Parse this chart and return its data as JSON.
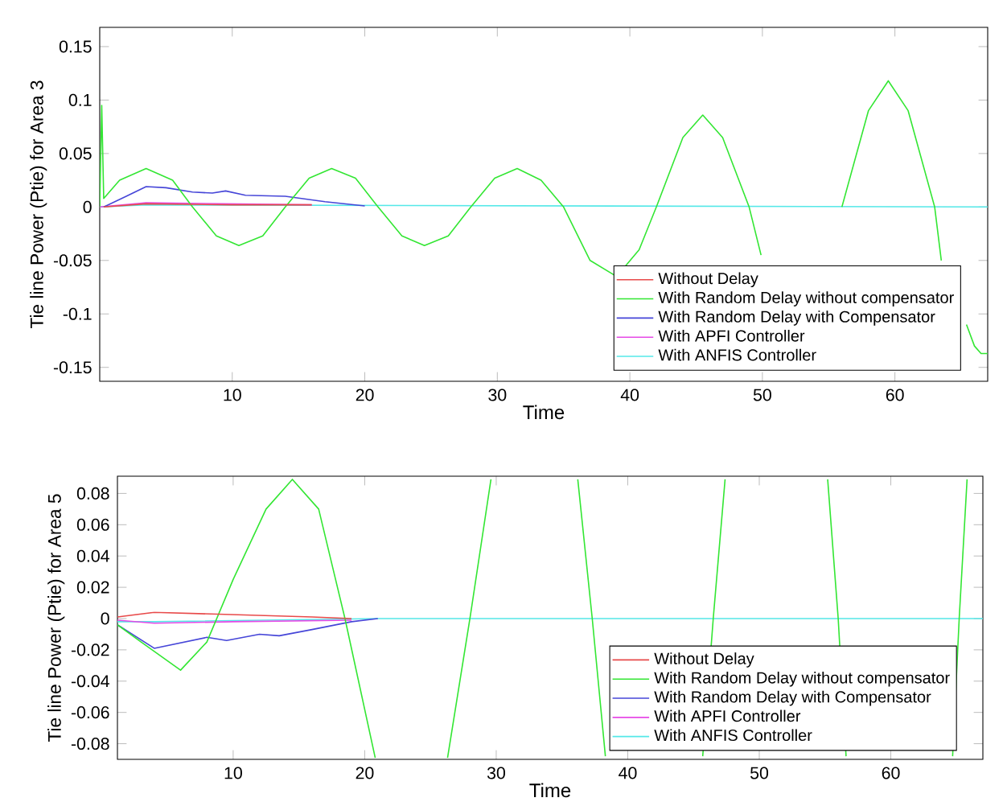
{
  "chart_data": [
    {
      "type": "line",
      "xlabel": "Time",
      "ylabel": "Tie line Power (Ptie) for Area 3",
      "xlim": [
        0,
        67
      ],
      "ylim": [
        -0.163,
        0.168
      ],
      "xticks": [
        10,
        20,
        30,
        40,
        50,
        60
      ],
      "yticks": [
        -0.15,
        -0.1,
        -0.05,
        0,
        0.05,
        0.1,
        0.15
      ],
      "legend": "bottom right",
      "grid": false,
      "series": [
        {
          "name": "Without Delay",
          "color": "#e84a4a",
          "x": [
            0.3,
            3.5,
            10,
            16
          ],
          "values": [
            0,
            0.003,
            0.002,
            0.002
          ]
        },
        {
          "name": "With Random Delay without compensator",
          "color": "#33e633",
          "x": [
            0,
            0.15,
            0.3,
            1.5,
            3.5,
            5.5,
            7,
            8.8,
            10.5,
            12.3,
            14,
            15.8,
            17.5,
            19.3,
            21,
            22.8,
            24.5,
            26.3,
            28,
            29.8,
            31.5,
            33.3,
            35,
            37,
            39,
            40.7,
            42,
            44,
            45.5,
            47,
            49,
            49.9,
            51,
            52.5,
            54.5,
            56,
            58,
            59.5,
            61,
            63,
            63.5,
            64.2,
            64.8,
            65.4,
            66,
            66.5,
            67
          ],
          "values": [
            0,
            0.095,
            0.008,
            0.025,
            0.036,
            0.025,
            0,
            -0.027,
            -0.036,
            -0.027,
            0,
            0.027,
            0.036,
            0.027,
            0,
            -0.027,
            -0.036,
            -0.027,
            0,
            0.027,
            0.036,
            0.025,
            0,
            -0.05,
            -0.065,
            -0.04,
            0,
            0.065,
            0.086,
            0.065,
            0,
            -0.045,
            null,
            null,
            null,
            0,
            0.09,
            0.118,
            0.09,
            0,
            -0.05,
            null,
            null,
            -0.11,
            -0.13,
            -0.137,
            -0.137
          ]
        },
        {
          "name": "With Random Delay with Compensator",
          "color": "#4646d8",
          "x": [
            0.3,
            2,
            3.5,
            5,
            7,
            8.5,
            9.5,
            11,
            14,
            17,
            20
          ],
          "values": [
            0,
            0.01,
            0.019,
            0.018,
            0.014,
            0.013,
            0.015,
            0.011,
            0.01,
            0.005,
            0.001
          ]
        },
        {
          "name": "With APFI Controller",
          "color": "#e64ae6",
          "x": [
            0,
            3.5,
            16
          ],
          "values": [
            0,
            0.004,
            0.002
          ]
        },
        {
          "name": "With ANFIS Controller",
          "color": "#55e8e8",
          "x": [
            0,
            3.5,
            67
          ],
          "values": [
            0,
            0.002,
            0
          ]
        }
      ]
    },
    {
      "type": "line",
      "xlabel": "Time",
      "ylabel": "Tie line Power (Ptie) for Area 5",
      "xlim": [
        1.2,
        67
      ],
      "ylim": [
        -0.09,
        0.091
      ],
      "xticks": [
        10,
        20,
        30,
        40,
        50,
        60
      ],
      "yticks": [
        -0.08,
        -0.06,
        -0.04,
        -0.02,
        0,
        0.02,
        0.04,
        0.06,
        0.08
      ],
      "legend": "bottom right",
      "grid": false,
      "series": [
        {
          "name": "Without Delay",
          "color": "#e84a4a",
          "x": [
            1.2,
            4,
            8,
            12,
            16,
            19
          ],
          "values": [
            0.001,
            0.004,
            0.003,
            0.002,
            0.001,
            0
          ]
        },
        {
          "name": "With Random Delay without compensator",
          "color": "#33e633",
          "x": [
            1.2,
            3,
            6,
            8,
            10,
            12.5,
            14.5,
            16.5,
            18.5,
            20.8,
            23.5,
            26.3,
            28,
            29.6,
            33,
            36.2,
            37.3,
            38.3,
            42,
            45.7,
            46.5,
            47.4,
            51,
            55.2,
            56,
            56.6,
            60,
            64.7,
            65.2,
            65.8
          ],
          "values": [
            -0.004,
            -0.015,
            -0.033,
            -0.015,
            0.025,
            0.07,
            0.089,
            0.07,
            0,
            -0.089,
            null,
            -0.089,
            0,
            0.089,
            null,
            0.089,
            0,
            -0.088,
            null,
            -0.088,
            0,
            0.089,
            null,
            0.089,
            0,
            -0.088,
            null,
            -0.088,
            0,
            0.089
          ]
        },
        {
          "name": "With Random Delay with Compensator",
          "color": "#4646d8",
          "x": [
            1.2,
            4,
            8,
            9.5,
            12,
            13.5,
            16,
            19,
            21
          ],
          "values": [
            -0.004,
            -0.019,
            -0.012,
            -0.014,
            -0.01,
            -0.011,
            -0.007,
            -0.002,
            0
          ]
        },
        {
          "name": "With APFI Controller",
          "color": "#e64ae6",
          "x": [
            1.2,
            4,
            10,
            19
          ],
          "values": [
            -0.001,
            -0.003,
            -0.002,
            -0.001
          ]
        },
        {
          "name": "With ANFIS Controller",
          "color": "#55e8e8",
          "x": [
            1.2,
            4,
            21,
            67
          ],
          "values": [
            -0.002,
            -0.002,
            0,
            0
          ]
        }
      ]
    }
  ]
}
